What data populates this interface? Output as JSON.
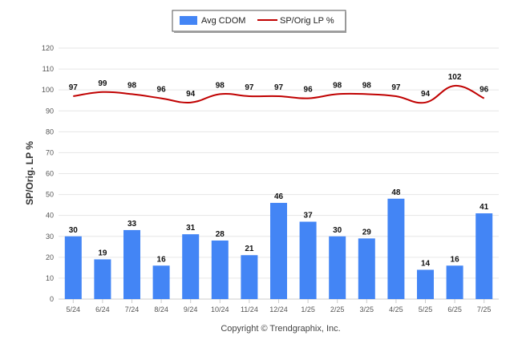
{
  "chart_data": {
    "type": "bar",
    "categories": [
      "5/24",
      "6/24",
      "7/24",
      "8/24",
      "9/24",
      "10/24",
      "11/24",
      "12/24",
      "1/25",
      "2/25",
      "3/25",
      "4/25",
      "5/25",
      "6/25",
      "7/25"
    ],
    "series": [
      {
        "name": "Avg CDOM",
        "type": "bar",
        "color": "#4385f5",
        "values": [
          30,
          19,
          33,
          16,
          31,
          28,
          21,
          46,
          37,
          30,
          29,
          48,
          14,
          16,
          41
        ]
      },
      {
        "name": "SP/Orig LP %",
        "type": "line",
        "color": "#c00000",
        "values": [
          97,
          99,
          98,
          96,
          94,
          98,
          97,
          97,
          96,
          98,
          98,
          97,
          94,
          102,
          96
        ]
      }
    ],
    "ylabel": "SP/Orig. LP %",
    "xlabel": "",
    "ylim": [
      0,
      120
    ],
    "yticks": [
      0,
      10,
      20,
      30,
      40,
      50,
      60,
      70,
      80,
      90,
      100,
      110,
      120
    ],
    "grid": true,
    "legend_position": "top-center",
    "copyright": "Copyright © Trendgraphix, Inc."
  }
}
